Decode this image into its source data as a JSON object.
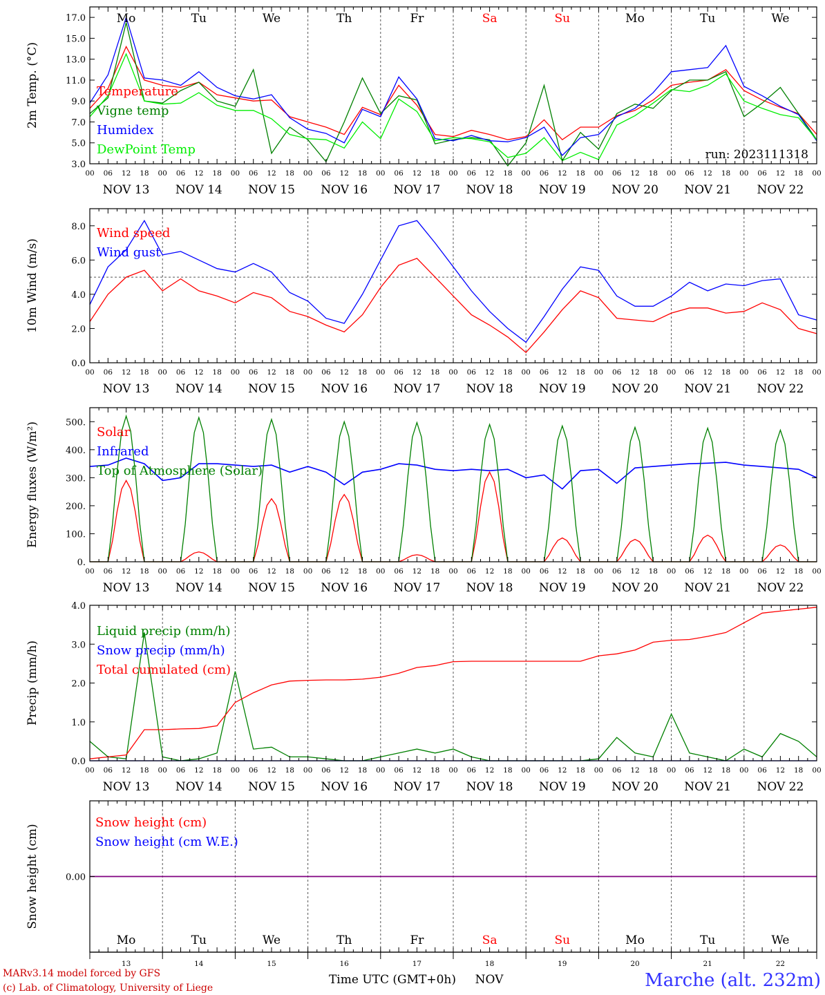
{
  "chart_data": [
    {
      "type": "line",
      "ylabel": "2m Temp. (°C)",
      "ylim": [
        3.0,
        18.0
      ],
      "yticks": [
        "3.0",
        "5.0",
        "7.0",
        "9.0",
        "11.0",
        "13.0",
        "15.0",
        "17.0"
      ],
      "x_hours": [
        0,
        6,
        12,
        18,
        24,
        30,
        36,
        42,
        48,
        54,
        60,
        66,
        72,
        78,
        84,
        90,
        96,
        102,
        108,
        114,
        120,
        126,
        132,
        138,
        144,
        150,
        156,
        162,
        168,
        174,
        180,
        186,
        192,
        198,
        204,
        210,
        216,
        222,
        228,
        234,
        240
      ],
      "annotation": "run: 2023111318",
      "series": [
        {
          "name": "Temperature",
          "color": "#ff0000",
          "values": [
            8.3,
            10.2,
            14.2,
            11.0,
            10.5,
            10.3,
            10.8,
            9.6,
            9.3,
            9.0,
            9.1,
            7.5,
            7.0,
            6.5,
            5.8,
            8.4,
            7.7,
            10.5,
            8.6,
            5.8,
            5.6,
            6.2,
            5.8,
            5.3,
            5.6,
            7.2,
            5.3,
            6.5,
            6.5,
            7.6,
            8.1,
            9.1,
            10.5,
            10.8,
            11.0,
            12.0,
            10.0,
            9.1,
            8.4,
            7.8,
            5.8
          ]
        },
        {
          "name": "Vigne temp",
          "color": "#008000",
          "values": [
            7.8,
            9.3,
            16.5,
            9.0,
            8.8,
            10.0,
            10.8,
            9.0,
            8.5,
            12.0,
            4.0,
            6.5,
            5.3,
            3.2,
            7.0,
            11.2,
            7.8,
            9.5,
            9.1,
            4.9,
            5.3,
            5.5,
            5.3,
            2.8,
            5.0,
            10.5,
            3.3,
            6.0,
            4.4,
            7.8,
            8.7,
            8.3,
            10.0,
            11.0,
            11.0,
            11.8,
            7.5,
            8.8,
            10.3,
            7.8,
            5.3
          ]
        },
        {
          "name": "Humidex",
          "color": "#0000ff",
          "values": [
            8.8,
            11.5,
            17.0,
            11.2,
            11.0,
            10.5,
            11.8,
            10.3,
            9.5,
            9.2,
            9.6,
            7.4,
            6.3,
            5.9,
            5.0,
            8.2,
            7.5,
            11.3,
            9.2,
            5.4,
            5.2,
            5.7,
            5.2,
            5.1,
            5.5,
            6.5,
            3.8,
            5.5,
            5.8,
            7.5,
            8.3,
            9.8,
            11.8,
            12.0,
            12.2,
            14.3,
            10.4,
            9.5,
            8.5,
            7.7,
            5.2
          ]
        },
        {
          "name": "DewPoint Temp",
          "color": "#00ee00",
          "values": [
            7.5,
            9.5,
            13.5,
            9.0,
            8.7,
            8.8,
            9.8,
            8.6,
            8.1,
            8.1,
            7.3,
            5.8,
            5.4,
            5.3,
            4.5,
            7.0,
            5.4,
            9.2,
            8.0,
            5.2,
            5.5,
            5.4,
            5.1,
            3.6,
            4.0,
            5.5,
            3.3,
            4.1,
            3.4,
            6.7,
            7.6,
            8.8,
            10.1,
            9.9,
            10.5,
            11.6,
            9.0,
            8.3,
            7.7,
            7.4,
            5.3
          ]
        }
      ]
    },
    {
      "type": "line",
      "ylabel": "10m Wind (m/s)",
      "ylim": [
        0.0,
        9.0
      ],
      "yticks": [
        "0.0",
        "2.0",
        "4.0",
        "6.0",
        "8.0"
      ],
      "x_hours": [
        0,
        6,
        12,
        18,
        24,
        30,
        36,
        42,
        48,
        54,
        60,
        66,
        72,
        78,
        84,
        90,
        96,
        102,
        108,
        114,
        120,
        126,
        132,
        138,
        144,
        150,
        156,
        162,
        168,
        174,
        180,
        186,
        192,
        198,
        204,
        210,
        216,
        222,
        228,
        234,
        240
      ],
      "reference_line": 5.0,
      "series": [
        {
          "name": "Wind speed",
          "color": "#ff0000",
          "values": [
            2.4,
            4.0,
            5.0,
            5.4,
            4.2,
            4.9,
            4.2,
            3.9,
            3.5,
            4.1,
            3.8,
            3.0,
            2.7,
            2.2,
            1.8,
            2.8,
            4.4,
            5.7,
            6.1,
            5.0,
            3.9,
            2.8,
            2.2,
            1.5,
            0.6,
            1.8,
            3.1,
            4.2,
            3.8,
            2.6,
            2.5,
            2.4,
            2.9,
            3.2,
            3.2,
            2.9,
            3.0,
            3.5,
            3.1,
            2.0,
            1.7
          ]
        },
        {
          "name": "Wind gust",
          "color": "#0000ff",
          "values": [
            3.4,
            5.6,
            6.6,
            8.3,
            6.3,
            6.5,
            6.0,
            5.5,
            5.3,
            5.8,
            5.3,
            4.1,
            3.6,
            2.6,
            2.3,
            4.0,
            6.0,
            8.0,
            8.3,
            7.0,
            5.6,
            4.2,
            3.0,
            2.0,
            1.2,
            2.7,
            4.3,
            5.6,
            5.4,
            3.9,
            3.3,
            3.3,
            3.9,
            4.7,
            4.2,
            4.6,
            4.5,
            4.8,
            4.9,
            2.8,
            2.5
          ]
        }
      ]
    },
    {
      "type": "line",
      "ylabel": "Energy fluxes (W/m²)",
      "ylim": [
        0,
        550
      ],
      "yticks": [
        "0.",
        "100.",
        "200.",
        "300.",
        "400.",
        "500."
      ],
      "series": [
        {
          "name": "Solar",
          "color": "#ff0000",
          "peaks": [
            {
              "day": 13,
              "value": 290
            },
            {
              "day": 14,
              "value": 35
            },
            {
              "day": 15,
              "value": 225
            },
            {
              "day": 16,
              "value": 240
            },
            {
              "day": 17,
              "value": 25
            },
            {
              "day": 18,
              "value": 320
            },
            {
              "day": 19,
              "value": 85
            },
            {
              "day": 20,
              "value": 80
            },
            {
              "day": 21,
              "value": 95
            },
            {
              "day": 22,
              "value": 60
            }
          ]
        },
        {
          "name": "Infrared",
          "color": "#0000ff",
          "x_hours": [
            0,
            6,
            12,
            18,
            24,
            30,
            36,
            42,
            48,
            54,
            60,
            66,
            72,
            78,
            84,
            90,
            96,
            102,
            108,
            114,
            120,
            126,
            132,
            138,
            144,
            150,
            156,
            162,
            168,
            174,
            180,
            186,
            192,
            198,
            204,
            210,
            216,
            222,
            228,
            234,
            240
          ],
          "values": [
            340,
            345,
            370,
            350,
            290,
            300,
            350,
            350,
            345,
            340,
            345,
            320,
            340,
            320,
            275,
            320,
            330,
            350,
            345,
            330,
            325,
            330,
            325,
            330,
            300,
            310,
            260,
            325,
            330,
            280,
            335,
            340,
            345,
            350,
            352,
            355,
            345,
            340,
            335,
            330,
            300
          ]
        },
        {
          "name": "Top of Atmosphere (Solar)",
          "color": "#008000",
          "peaks": [
            {
              "day": 13,
              "value": 520
            },
            {
              "day": 14,
              "value": 515
            },
            {
              "day": 15,
              "value": 508
            },
            {
              "day": 16,
              "value": 500
            },
            {
              "day": 17,
              "value": 497
            },
            {
              "day": 18,
              "value": 490
            },
            {
              "day": 19,
              "value": 485
            },
            {
              "day": 20,
              "value": 480
            },
            {
              "day": 21,
              "value": 477
            },
            {
              "day": 22,
              "value": 470
            }
          ]
        }
      ]
    },
    {
      "type": "line",
      "ylabel": "Precip (mm/h)",
      "ylim": [
        0.0,
        4.0
      ],
      "yticks": [
        "0.0",
        "1.0",
        "2.0",
        "3.0",
        "4.0"
      ],
      "x_hours": [
        0,
        6,
        12,
        18,
        24,
        30,
        36,
        42,
        48,
        54,
        60,
        66,
        72,
        78,
        84,
        90,
        96,
        102,
        108,
        114,
        120,
        126,
        132,
        138,
        144,
        150,
        156,
        162,
        168,
        174,
        180,
        186,
        192,
        198,
        204,
        210,
        216,
        222,
        228,
        234,
        240
      ],
      "series": [
        {
          "name": "Liquid precip (mm/h)",
          "color": "#008000",
          "values": [
            0.5,
            0.1,
            0.05,
            3.3,
            0.1,
            0.0,
            0.05,
            0.2,
            2.3,
            0.3,
            0.35,
            0.1,
            0.1,
            0.05,
            0.0,
            0.0,
            0.1,
            0.2,
            0.3,
            0.2,
            0.3,
            0.1,
            0.0,
            0.0,
            0.0,
            0.0,
            0.0,
            0.0,
            0.05,
            0.6,
            0.2,
            0.1,
            1.2,
            0.2,
            0.1,
            0.0,
            0.3,
            0.1,
            0.7,
            0.5,
            0.1
          ]
        },
        {
          "name": "Snow precip (mm/h)",
          "color": "#0000ff",
          "values": [
            0,
            0,
            0,
            0,
            0,
            0,
            0,
            0,
            0,
            0,
            0,
            0,
            0,
            0,
            0,
            0,
            0,
            0,
            0,
            0,
            0,
            0,
            0,
            0,
            0,
            0,
            0,
            0,
            0,
            0,
            0,
            0,
            0,
            0,
            0,
            0,
            0,
            0,
            0,
            0,
            0
          ]
        },
        {
          "name": "Total cumulated (cm)",
          "color": "#ff0000",
          "values": [
            0.05,
            0.1,
            0.15,
            0.8,
            0.8,
            0.82,
            0.83,
            0.9,
            1.5,
            1.75,
            1.95,
            2.05,
            2.07,
            2.08,
            2.08,
            2.1,
            2.15,
            2.25,
            2.4,
            2.45,
            2.55,
            2.56,
            2.56,
            2.56,
            2.56,
            2.56,
            2.56,
            2.56,
            2.7,
            2.75,
            2.85,
            3.05,
            3.1,
            3.12,
            3.2,
            3.3,
            3.55,
            3.8,
            3.85,
            3.9,
            3.95
          ]
        }
      ]
    },
    {
      "type": "line",
      "ylabel": "Snow height (cm)",
      "yticks": [
        "0.00"
      ],
      "series": [
        {
          "name": "Snow height (cm)",
          "color": "#ff0000",
          "values": [
            0,
            0,
            0,
            0,
            0,
            0,
            0,
            0,
            0,
            0,
            0
          ]
        },
        {
          "name": "Snow height (cm W.E.)",
          "color": "#0000ff",
          "values": [
            0,
            0,
            0,
            0,
            0,
            0,
            0,
            0,
            0,
            0,
            0
          ]
        }
      ]
    }
  ],
  "axis": {
    "days": [
      {
        "label": "Mo",
        "date": "NOV 13",
        "num": "13",
        "color": "#000000"
      },
      {
        "label": "Tu",
        "date": "NOV 14",
        "num": "14",
        "color": "#000000"
      },
      {
        "label": "We",
        "date": "NOV 15",
        "num": "15",
        "color": "#000000"
      },
      {
        "label": "Th",
        "date": "NOV 16",
        "num": "16",
        "color": "#000000"
      },
      {
        "label": "Fr",
        "date": "NOV 17",
        "num": "17",
        "color": "#000000"
      },
      {
        "label": "Sa",
        "date": "NOV 18",
        "num": "18",
        "color": "#ff0000"
      },
      {
        "label": "Su",
        "date": "NOV 19",
        "num": "19",
        "color": "#ff0000"
      },
      {
        "label": "Mo",
        "date": "NOV 20",
        "num": "20",
        "color": "#000000"
      },
      {
        "label": "Tu",
        "date": "NOV 21",
        "num": "21",
        "color": "#000000"
      },
      {
        "label": "We",
        "date": "NOV 22",
        "num": "22",
        "color": "#000000"
      }
    ],
    "hour_labels": [
      "00",
      "06",
      "12",
      "18"
    ],
    "final_hour_label": "00",
    "month_label": "NOV",
    "xlabel": "Time UTC (GMT+0h)"
  },
  "footer": {
    "credit_line1": "MARv3.14 model forced by GFS",
    "credit_line2": "(c) Lab. of Climatology, University of Liege",
    "station": "Marche (alt. 232m)",
    "station_color": "#3333ff"
  }
}
